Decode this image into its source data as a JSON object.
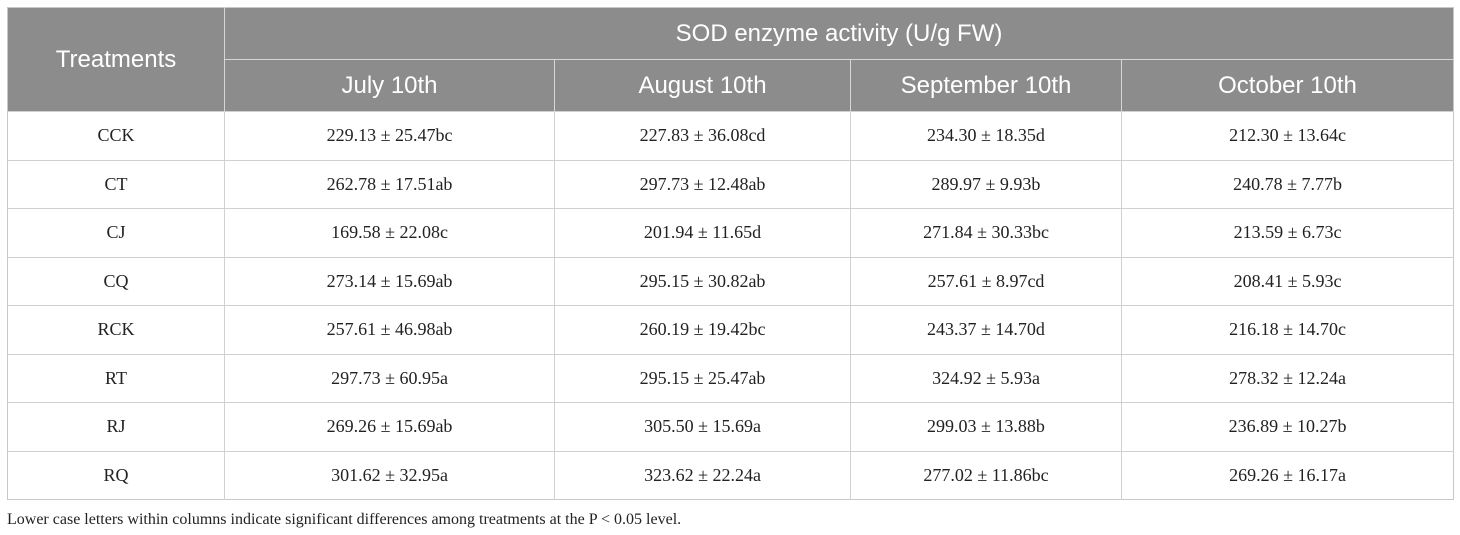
{
  "table": {
    "treatments_header": "Treatments",
    "group_header": "SOD enzyme activity (U/g FW)",
    "date_headers": [
      "July 10th",
      "August 10th",
      "September 10th",
      "October 10th"
    ],
    "rows": [
      {
        "treatment": "CCK",
        "values": [
          "229.13 ± 25.47bc",
          "227.83 ± 36.08cd",
          "234.30 ± 18.35d",
          "212.30 ± 13.64c"
        ]
      },
      {
        "treatment": "CT",
        "values": [
          "262.78 ± 17.51ab",
          "297.73 ± 12.48ab",
          "289.97 ± 9.93b",
          "240.78 ± 7.77b"
        ]
      },
      {
        "treatment": "CJ",
        "values": [
          "169.58 ± 22.08c",
          "201.94 ± 11.65d",
          "271.84 ± 30.33bc",
          "213.59 ± 6.73c"
        ]
      },
      {
        "treatment": "CQ",
        "values": [
          "273.14 ± 15.69ab",
          "295.15 ± 30.82ab",
          "257.61 ± 8.97cd",
          "208.41 ± 5.93c"
        ]
      },
      {
        "treatment": "RCK",
        "values": [
          "257.61 ± 46.98ab",
          "260.19 ± 19.42bc",
          "243.37 ± 14.70d",
          "216.18 ± 14.70c"
        ]
      },
      {
        "treatment": "RT",
        "values": [
          "297.73 ± 60.95a",
          "295.15 ± 25.47ab",
          "324.92 ± 5.93a",
          "278.32 ± 12.24a"
        ]
      },
      {
        "treatment": "RJ",
        "values": [
          "269.26 ± 15.69ab",
          "305.50 ± 15.69a",
          "299.03 ± 13.88b",
          "236.89 ± 10.27b"
        ]
      },
      {
        "treatment": "RQ",
        "values": [
          "301.62 ± 32.95a",
          "323.62 ± 22.24a",
          "277.02 ± 11.86bc",
          "269.26 ± 16.17a"
        ]
      }
    ]
  },
  "footnote": "Lower case letters within columns indicate significant differences among treatments at the P < 0.05 level.",
  "colors": {
    "header_background": "#8c8c8c",
    "header_text": "#ffffff",
    "grid_lines": "#d0d0d0"
  }
}
